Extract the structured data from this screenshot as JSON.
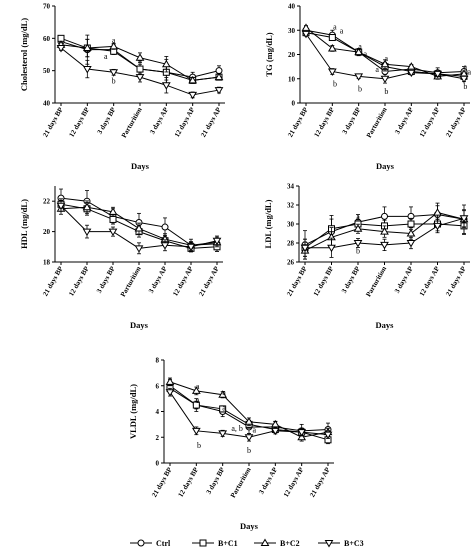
{
  "legend": [
    {
      "name": "Ctrl",
      "marker": "circle"
    },
    {
      "name": "B+C1",
      "marker": "square"
    },
    {
      "name": "B+C2",
      "marker": "triangle-up"
    },
    {
      "name": "B+C3",
      "marker": "triangle-down"
    }
  ],
  "chart_data": [
    {
      "type": "line",
      "ylabel": "Cholesterol (mg/dL)",
      "xlabel": "Days",
      "categories": [
        "21 days BP",
        "12 days BP",
        "3 days BP",
        "Parturition",
        "3 days AP",
        "12 days AP",
        "21 days AP"
      ],
      "ylim": [
        40,
        70
      ],
      "yticks": [
        40,
        50,
        60,
        70
      ],
      "series": [
        {
          "name": "Ctrl",
          "values": [
            59,
            56.5,
            56.5,
            50.5,
            49.5,
            48,
            50
          ]
        },
        {
          "name": "B+C1",
          "values": [
            60,
            57,
            56,
            50.5,
            49.5,
            47,
            48
          ]
        },
        {
          "name": "B+C2",
          "values": [
            58,
            57,
            57.5,
            54,
            52,
            47,
            48
          ]
        },
        {
          "name": "B+C3",
          "values": [
            57,
            50.5,
            49.5,
            48,
            45.5,
            42.5,
            44
          ]
        }
      ],
      "error": [
        1.2,
        4.5,
        1.5,
        2.5,
        4,
        1.5,
        1.5
      ],
      "annotations": [
        {
          "text": "a",
          "x": 2,
          "y": 59.5
        },
        {
          "text": "a",
          "x": 1.7,
          "y": 54.5
        },
        {
          "text": "b",
          "x": 2,
          "y": 47
        }
      ]
    },
    {
      "type": "line",
      "ylabel": "TG (mg/dL)",
      "xlabel": "Days",
      "categories": [
        "21 days BP",
        "12 days BP",
        "3 days BP",
        "Parturition",
        "3 days AP",
        "12 days AP",
        "21 days AP"
      ],
      "ylim": [
        0,
        40
      ],
      "yticks": [
        0,
        10,
        20,
        30,
        40
      ],
      "series": [
        {
          "name": "Ctrl",
          "values": [
            30,
            28,
            21,
            13,
            14,
            12.5,
            13
          ]
        },
        {
          "name": "B+C1",
          "values": [
            29,
            27,
            21,
            15,
            13,
            12,
            11
          ]
        },
        {
          "name": "B+C2",
          "values": [
            31,
            22.5,
            21,
            16,
            15,
            11,
            12
          ]
        },
        {
          "name": "B+C3",
          "values": [
            28.5,
            13,
            11,
            10,
            12.5,
            12,
            10
          ]
        }
      ],
      "error": [
        1.5,
        2,
        1.5,
        3,
        1.5,
        2,
        2
      ],
      "annotations": [
        {
          "text": "a",
          "x": 1.1,
          "y": 31.5
        },
        {
          "text": "a",
          "x": 1.35,
          "y": 30
        },
        {
          "text": "a",
          "x": 2.05,
          "y": 23.5
        },
        {
          "text": "a",
          "x": 2.25,
          "y": 20.5
        },
        {
          "text": "a",
          "x": 3.05,
          "y": 18.5
        },
        {
          "text": "a",
          "x": 2.7,
          "y": 14
        },
        {
          "text": "a",
          "x": 6.05,
          "y": 15
        },
        {
          "text": "a",
          "x": 6.2,
          "y": 13
        },
        {
          "text": "b",
          "x": 1.1,
          "y": 8
        },
        {
          "text": "b",
          "x": 2.05,
          "y": 6
        },
        {
          "text": "b",
          "x": 3.05,
          "y": 5
        },
        {
          "text": "b",
          "x": 6.05,
          "y": 7
        }
      ]
    },
    {
      "type": "line",
      "ylabel": "HDL (mg/dL)",
      "xlabel": "Days",
      "categories": [
        "21 days BP",
        "12 days BP",
        "3 days BP",
        "Parturition",
        "3 days AP",
        "12 days AP",
        "21 days AP"
      ],
      "ylim": [
        18,
        23
      ],
      "yticks": [
        18,
        20,
        22
      ],
      "series": [
        {
          "name": "Ctrl",
          "values": [
            22.2,
            22,
            21,
            20.6,
            20.3,
            19.1,
            19.2
          ]
        },
        {
          "name": "B+C1",
          "values": [
            21.8,
            21.5,
            20.8,
            20,
            19.4,
            18.9,
            19
          ]
        },
        {
          "name": "B+C2",
          "values": [
            21.5,
            21.6,
            21.3,
            20.2,
            19.5,
            19.1,
            19.3
          ]
        },
        {
          "name": "B+C3",
          "values": [
            21.7,
            20,
            20,
            18.9,
            19.1,
            19,
            19.4
          ]
        }
      ],
      "error": [
        0.6,
        0.7,
        0.5,
        0.6,
        0.6,
        0.4,
        0.5
      ],
      "annotations": []
    },
    {
      "type": "line",
      "ylabel": "LDL (mg/dL)",
      "xlabel": "Days",
      "categories": [
        "21 days BP",
        "12 days BP",
        "3 days BP",
        "Parturition",
        "3 days AP",
        "12 days AP",
        "21 days AP"
      ],
      "ylim": [
        26,
        34
      ],
      "yticks": [
        26,
        28,
        30,
        32,
        34
      ],
      "series": [
        {
          "name": "Ctrl",
          "values": [
            27.8,
            29.2,
            30.2,
            30.8,
            30.8,
            31,
            30.5
          ]
        },
        {
          "name": "B+C1",
          "values": [
            27.5,
            29.5,
            30,
            29.8,
            30,
            30,
            29.8
          ]
        },
        {
          "name": "B+C2",
          "values": [
            27.2,
            28.6,
            29.5,
            29.2,
            29,
            31.2,
            30.5
          ]
        },
        {
          "name": "B+C3",
          "values": [
            27.5,
            27.5,
            28,
            27.8,
            28,
            29.8,
            30.6
          ]
        }
      ],
      "error": [
        1.5,
        1.7,
        0.8,
        1,
        1,
        1.2,
        1.5
      ],
      "annotations": [
        {
          "text": "a",
          "x": 2,
          "y": 30.8
        },
        {
          "text": "b",
          "x": 2,
          "y": 27.2
        }
      ]
    },
    {
      "type": "line",
      "ylabel": "VLDL (mg/dL)",
      "xlabel": "Days",
      "categories": [
        "21 days BP",
        "12 days BP",
        "3 days BP",
        "Parturition",
        "3 days AP",
        "12 days AP",
        "21 days AP"
      ],
      "ylim": [
        0,
        8
      ],
      "yticks": [
        0,
        2,
        4,
        6,
        8
      ],
      "series": [
        {
          "name": "Ctrl",
          "values": [
            6,
            4.5,
            4,
            2.8,
            2.8,
            2.5,
            2.6
          ]
        },
        {
          "name": "B+C1",
          "values": [
            5.8,
            4.5,
            4.2,
            3,
            2.6,
            2.4,
            1.8
          ]
        },
        {
          "name": "B+C2",
          "values": [
            6.3,
            5.6,
            5.3,
            3.2,
            3,
            2,
            2.4
          ]
        },
        {
          "name": "B+C3",
          "values": [
            5.5,
            2.5,
            2.3,
            2,
            2.5,
            2.4,
            2.2
          ]
        }
      ],
      "error": [
        0.5,
        0.5,
        0.4,
        0.5,
        0.4,
        0.5,
        0.5
      ],
      "annotations": [
        {
          "text": "a",
          "x": 1.05,
          "y": 6
        },
        {
          "text": "a",
          "x": 2.05,
          "y": 5.5
        },
        {
          "text": "a",
          "x": 1.05,
          "y": 4.9
        },
        {
          "text": "a",
          "x": 2.05,
          "y": 4.3
        },
        {
          "text": "a, b",
          "x": 2.55,
          "y": 2.7
        },
        {
          "text": "a",
          "x": 3.2,
          "y": 2.6
        },
        {
          "text": "b",
          "x": 1.1,
          "y": 1.4
        },
        {
          "text": "b",
          "x": 3,
          "y": 1
        }
      ]
    }
  ]
}
